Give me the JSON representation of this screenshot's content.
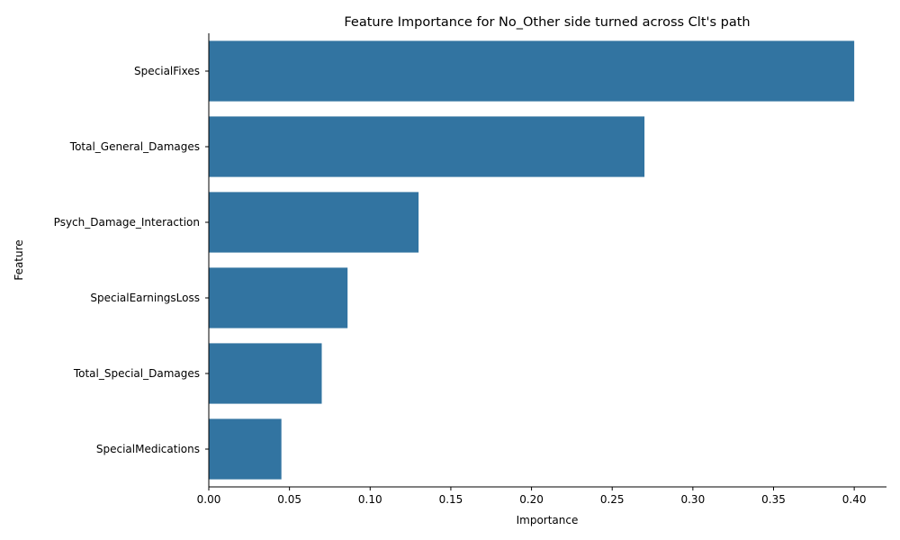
{
  "chart_data": {
    "type": "bar",
    "orientation": "horizontal",
    "title": "Feature Importance for No_Other side turned across Clt's path",
    "xlabel": "Importance",
    "ylabel": "Feature",
    "categories": [
      "SpecialFixes",
      "Total_General_Damages",
      "Psych_Damage_Interaction",
      "SpecialEarningsLoss",
      "Total_Special_Damages",
      "SpecialMedications"
    ],
    "values": [
      0.4,
      0.27,
      0.13,
      0.086,
      0.07,
      0.045
    ],
    "xlim": [
      0,
      0.42
    ],
    "xticks": [
      0.0,
      0.05,
      0.1,
      0.15,
      0.2,
      0.25,
      0.3,
      0.35,
      0.4
    ],
    "xtick_labels": [
      "0.00",
      "0.05",
      "0.10",
      "0.15",
      "0.20",
      "0.25",
      "0.30",
      "0.35",
      "0.40"
    ],
    "bar_color": "#3274a1",
    "grid": false,
    "legend": "none"
  }
}
